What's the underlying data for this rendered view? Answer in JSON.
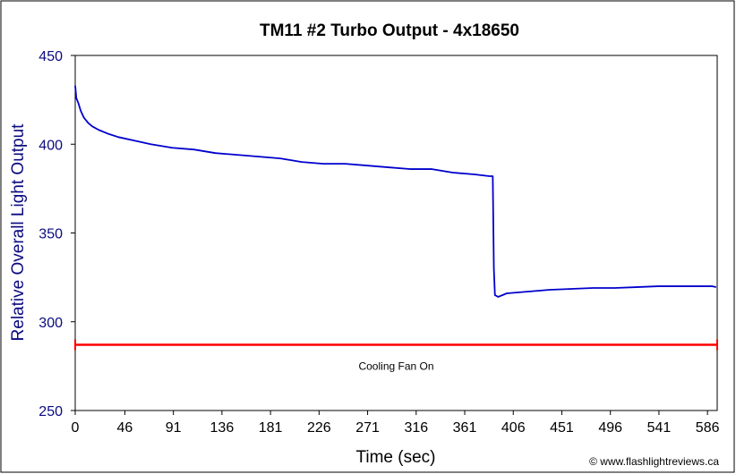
{
  "chart_data": {
    "type": "line",
    "title": "TM11 #2 Turbo Output - 4x18650",
    "xlabel": "Time (sec)",
    "ylabel": "Relative Overall Light Output",
    "xlim": [
      0,
      595
    ],
    "ylim": [
      250,
      450
    ],
    "x_ticks": [
      "0",
      "46",
      "91",
      "136",
      "181",
      "226",
      "271",
      "316",
      "361",
      "406",
      "451",
      "496",
      "541",
      "586"
    ],
    "y_ticks": [
      "250",
      "300",
      "350",
      "400",
      "450"
    ],
    "grid": false,
    "legend": "none",
    "series": [
      {
        "color": "#0000cc",
        "points": [
          [
            0,
            433
          ],
          [
            1,
            426
          ],
          [
            3,
            423
          ],
          [
            5,
            419
          ],
          [
            8,
            415
          ],
          [
            12,
            412
          ],
          [
            16,
            410
          ],
          [
            22,
            408
          ],
          [
            30,
            406
          ],
          [
            40,
            404
          ],
          [
            55,
            402
          ],
          [
            70,
            400
          ],
          [
            90,
            398
          ],
          [
            110,
            397
          ],
          [
            130,
            395
          ],
          [
            150,
            394
          ],
          [
            170,
            393
          ],
          [
            190,
            392
          ],
          [
            210,
            390
          ],
          [
            230,
            389
          ],
          [
            250,
            389
          ],
          [
            270,
            388
          ],
          [
            290,
            387
          ],
          [
            310,
            386
          ],
          [
            330,
            386
          ],
          [
            350,
            384
          ],
          [
            370,
            383
          ],
          [
            384,
            382
          ],
          [
            387,
            382
          ],
          [
            388,
            330
          ],
          [
            389,
            315
          ],
          [
            392,
            314
          ],
          [
            396,
            315
          ],
          [
            400,
            316
          ],
          [
            410,
            316.5
          ],
          [
            420,
            317
          ],
          [
            440,
            318
          ],
          [
            460,
            318.5
          ],
          [
            480,
            319
          ],
          [
            500,
            319
          ],
          [
            520,
            319.5
          ],
          [
            540,
            320
          ],
          [
            560,
            320
          ],
          [
            580,
            320
          ],
          [
            590,
            320
          ],
          [
            594,
            319.5
          ]
        ]
      }
    ],
    "annotations": [
      {
        "text": "Cooling Fan On",
        "y": 287,
        "x_range": [
          0,
          595
        ],
        "color": "#ff0000"
      }
    ],
    "credit": "© www.flashlightreviews.ca"
  }
}
